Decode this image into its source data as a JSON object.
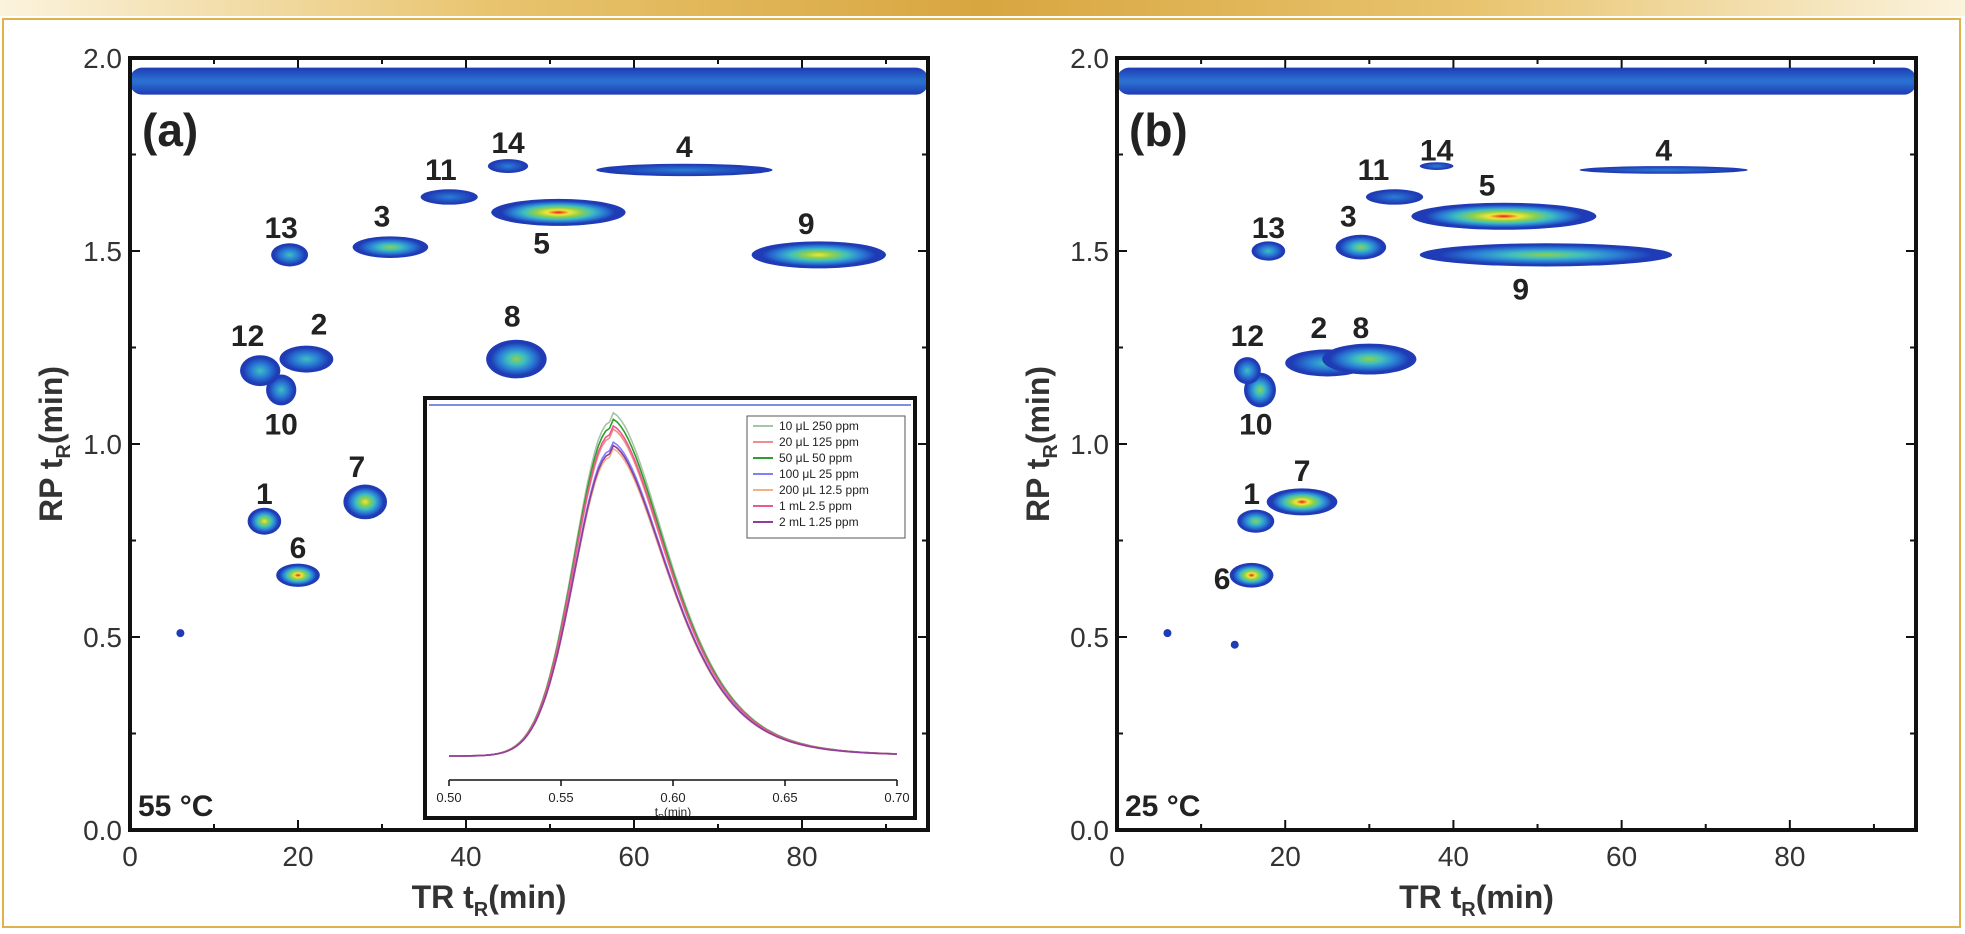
{
  "colors": {
    "frame": "#e0b24d",
    "blob_scale": [
      "#1f3bb5",
      "#2a7fd6",
      "#3fbfbf",
      "#8fd04a",
      "#f0e63a",
      "#ee1c1c"
    ]
  },
  "chart_data": [
    {
      "type": "heatmap",
      "panel_label": "(a)",
      "temperature": "55 °C",
      "xlabel": "TR t",
      "xlabel_sub": "R",
      "xlabel_unit": "(min)",
      "ylabel": "RP t",
      "ylabel_sub": "R",
      "ylabel_unit": "(min)",
      "xlim": [
        0,
        95
      ],
      "ylim": [
        0,
        2.0
      ],
      "xticks": [
        0,
        20,
        40,
        60,
        80
      ],
      "yticks": [
        "0.0",
        "0.5",
        "1.0",
        "1.5",
        "2.0"
      ],
      "background_band": {
        "y": 1.94,
        "thickness": 0.07,
        "x_from": 0,
        "x_to": 95
      },
      "peaks": [
        {
          "label": "1",
          "x": 16,
          "y": 0.8,
          "wx": 2.0,
          "wy": 0.035,
          "intensity": 0.7,
          "label_dx": 0,
          "label_dy": 0.07
        },
        {
          "label": "2",
          "x": 21,
          "y": 1.22,
          "wx": 3.2,
          "wy": 0.035,
          "intensity": 0.4,
          "label_dx": 1.5,
          "label_dy": 0.09
        },
        {
          "label": "3",
          "x": 31,
          "y": 1.51,
          "wx": 4.5,
          "wy": 0.028,
          "intensity": 0.55,
          "label_dx": -1,
          "label_dy": 0.08
        },
        {
          "label": "4",
          "x": 66,
          "y": 1.71,
          "wx": 10.5,
          "wy": 0.016,
          "intensity": 0.1,
          "label_dx": 0,
          "label_dy": 0.06
        },
        {
          "label": "5",
          "x": 51,
          "y": 1.6,
          "wx": 8.0,
          "wy": 0.035,
          "intensity": 1.0,
          "label_dx": -2,
          "label_dy": -0.08
        },
        {
          "label": "6",
          "x": 20,
          "y": 0.66,
          "wx": 2.6,
          "wy": 0.03,
          "intensity": 1.0,
          "label_dx": 0,
          "label_dy": 0.07
        },
        {
          "label": "7",
          "x": 28,
          "y": 0.85,
          "wx": 2.6,
          "wy": 0.045,
          "intensity": 0.85,
          "label_dx": -1,
          "label_dy": 0.09
        },
        {
          "label": "8",
          "x": 46,
          "y": 1.22,
          "wx": 3.6,
          "wy": 0.05,
          "intensity": 0.65,
          "label_dx": -0.5,
          "label_dy": 0.11
        },
        {
          "label": "9",
          "x": 82,
          "y": 1.49,
          "wx": 8.0,
          "wy": 0.035,
          "intensity": 0.7,
          "label_dx": -1.5,
          "label_dy": 0.08
        },
        {
          "label": "10",
          "x": 18,
          "y": 1.14,
          "wx": 1.8,
          "wy": 0.04,
          "intensity": 0.45,
          "label_dx": 0,
          "label_dy": -0.09
        },
        {
          "label": "11",
          "x": 38,
          "y": 1.64,
          "wx": 3.4,
          "wy": 0.02,
          "intensity": 0.2,
          "label_dx": -1,
          "label_dy": 0.07
        },
        {
          "label": "12",
          "x": 15.5,
          "y": 1.19,
          "wx": 2.4,
          "wy": 0.04,
          "intensity": 0.35,
          "label_dx": -1.5,
          "label_dy": 0.09
        },
        {
          "label": "13",
          "x": 19,
          "y": 1.49,
          "wx": 2.2,
          "wy": 0.03,
          "intensity": 0.4,
          "label_dx": -1,
          "label_dy": 0.07
        },
        {
          "label": "14",
          "x": 45,
          "y": 1.72,
          "wx": 2.4,
          "wy": 0.018,
          "intensity": 0.1,
          "label_dx": 0,
          "label_dy": 0.06
        }
      ],
      "dots": [
        {
          "x": 6,
          "y": 0.51
        }
      ],
      "inset": {
        "type": "line",
        "xlabel": "t",
        "xlabel_sub": "R",
        "xlabel_unit": "(min)",
        "xlim": [
          0.5,
          0.7
        ],
        "xticks": [
          "0.50",
          "0.55",
          "0.60",
          "0.65",
          "0.70"
        ],
        "peak_center": 0.572,
        "series": [
          {
            "name": "10 μL 250 ppm",
            "color": "#a8c4a8",
            "height": 1.05
          },
          {
            "name": "20 μL 125 ppm",
            "color": "#f28c8c",
            "height": 1.0
          },
          {
            "name": "50 μL 50 ppm",
            "color": "#2e9e2e",
            "height": 1.03
          },
          {
            "name": "100 μL 25 ppm",
            "color": "#8080ff",
            "height": 0.96
          },
          {
            "name": "200 μL 12.5 ppm",
            "color": "#f4b183",
            "height": 0.94
          },
          {
            "name": "1 mL 2.5 ppm",
            "color": "#ea5a8c",
            "height": 1.01
          },
          {
            "name": "2 mL 1.25 ppm",
            "color": "#8e3f9e",
            "height": 0.95
          }
        ]
      }
    },
    {
      "type": "heatmap",
      "panel_label": "(b)",
      "temperature": "25 °C",
      "xlabel": "TR t",
      "xlabel_sub": "R",
      "xlabel_unit": "(min)",
      "ylabel": "RP t",
      "ylabel_sub": "R",
      "ylabel_unit": "(min)",
      "xlim": [
        0,
        95
      ],
      "ylim": [
        0,
        2.0
      ],
      "xticks": [
        0,
        20,
        40,
        60,
        80
      ],
      "yticks": [
        "0.0",
        "0.5",
        "1.0",
        "1.5",
        "2.0"
      ],
      "background_band": {
        "y": 1.94,
        "thickness": 0.07,
        "x_from": 0,
        "x_to": 95
      },
      "peaks": [
        {
          "label": "1",
          "x": 16.5,
          "y": 0.8,
          "wx": 2.2,
          "wy": 0.03,
          "intensity": 0.55,
          "label_dx": -0.5,
          "label_dy": 0.07
        },
        {
          "label": "2",
          "x": 25,
          "y": 1.21,
          "wx": 5.0,
          "wy": 0.035,
          "intensity": 0.35,
          "label_dx": -1,
          "label_dy": 0.09
        },
        {
          "label": "3",
          "x": 29,
          "y": 1.51,
          "wx": 3.0,
          "wy": 0.032,
          "intensity": 0.6,
          "label_dx": -1.5,
          "label_dy": 0.08
        },
        {
          "label": "4",
          "x": 65,
          "y": 1.71,
          "wx": 10.0,
          "wy": 0.01,
          "intensity": 0.05,
          "label_dx": 0,
          "label_dy": 0.05
        },
        {
          "label": "5",
          "x": 46,
          "y": 1.59,
          "wx": 11.0,
          "wy": 0.035,
          "intensity": 1.0,
          "label_dx": -2,
          "label_dy": 0.08
        },
        {
          "label": "6",
          "x": 16,
          "y": 0.66,
          "wx": 2.6,
          "wy": 0.032,
          "intensity": 1.0,
          "label_dx": -3.5,
          "label_dy": -0.01
        },
        {
          "label": "7",
          "x": 22,
          "y": 0.85,
          "wx": 4.2,
          "wy": 0.035,
          "intensity": 1.0,
          "label_dx": 0,
          "label_dy": 0.08
        },
        {
          "label": "8",
          "x": 30,
          "y": 1.22,
          "wx": 5.6,
          "wy": 0.04,
          "intensity": 0.65,
          "label_dx": -1,
          "label_dy": 0.08
        },
        {
          "label": "9",
          "x": 51,
          "y": 1.49,
          "wx": 15.0,
          "wy": 0.03,
          "intensity": 0.6,
          "label_dx": -3,
          "label_dy": -0.09
        },
        {
          "label": "10",
          "x": 17,
          "y": 1.14,
          "wx": 1.9,
          "wy": 0.045,
          "intensity": 0.5,
          "label_dx": -0.5,
          "label_dy": -0.09
        },
        {
          "label": "11",
          "x": 33,
          "y": 1.64,
          "wx": 3.4,
          "wy": 0.02,
          "intensity": 0.15,
          "label_dx": -2.5,
          "label_dy": 0.07
        },
        {
          "label": "12",
          "x": 15.5,
          "y": 1.19,
          "wx": 1.6,
          "wy": 0.035,
          "intensity": 0.3,
          "label_dx": 0,
          "label_dy": 0.09
        },
        {
          "label": "13",
          "x": 18,
          "y": 1.5,
          "wx": 2.0,
          "wy": 0.025,
          "intensity": 0.4,
          "label_dx": 0,
          "label_dy": 0.06
        },
        {
          "label": "14",
          "x": 38,
          "y": 1.72,
          "wx": 2.0,
          "wy": 0.01,
          "intensity": 0.05,
          "label_dx": 0,
          "label_dy": 0.04
        }
      ],
      "dots": [
        {
          "x": 6,
          "y": 0.51
        },
        {
          "x": 14,
          "y": 0.48
        }
      ]
    }
  ]
}
